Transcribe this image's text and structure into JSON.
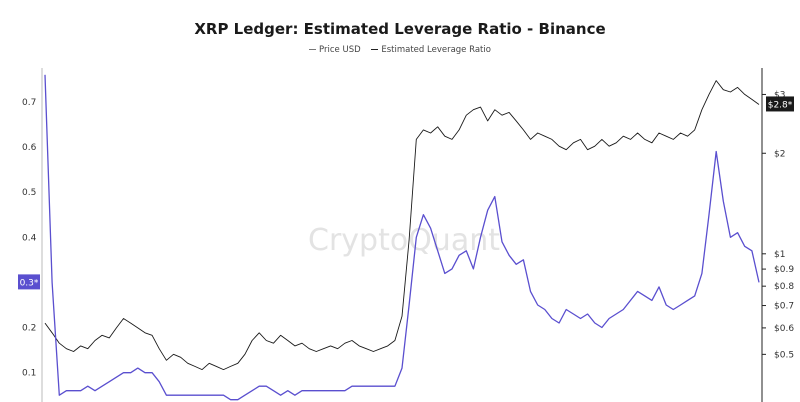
{
  "chart_data": {
    "type": "line",
    "title": "XRP Ledger: Estimated Leverage Ratio - Binance",
    "legend_position": "top-center",
    "watermark": "CryptoQuant",
    "grid": false,
    "y_left": {
      "ticks": [
        {
          "value": 0.1,
          "label": "0.1"
        },
        {
          "value": 0.2,
          "label": "0.2"
        },
        {
          "value": 0.3,
          "label": ""
        },
        {
          "value": 0.4,
          "label": "0.4"
        },
        {
          "value": 0.5,
          "label": "0.5"
        },
        {
          "value": 0.6,
          "label": "0.6"
        },
        {
          "value": 0.7,
          "label": "0.7"
        }
      ],
      "range": [
        0.035,
        0.775
      ]
    },
    "y_right": {
      "scale": "log",
      "ticks": [
        {
          "value": 0.5,
          "label": "$0.5"
        },
        {
          "value": 0.6,
          "label": "$0.6"
        },
        {
          "value": 0.7,
          "label": "$0.7"
        },
        {
          "value": 0.8,
          "label": "$0.8"
        },
        {
          "value": 0.9,
          "label": "$0.9"
        },
        {
          "value": 1,
          "label": "$1"
        },
        {
          "value": 2,
          "label": "$2"
        },
        {
          "value": 3,
          "label": "$3"
        }
      ],
      "range": [
        0.36,
        3.6
      ]
    },
    "current_badges": {
      "left": {
        "label": "0.3*",
        "value": 0.3,
        "color": "#5a4fcf"
      },
      "right": {
        "label": "$2.8*",
        "value": 2.8,
        "color": "#1a1a1a"
      }
    },
    "series": [
      {
        "name": "Estimated Leverage Ratio",
        "axis": "left",
        "color": "#5a4fcf",
        "x": [
          0,
          1,
          2,
          3,
          4,
          5,
          6,
          7,
          8,
          9,
          10,
          11,
          12,
          13,
          14,
          15,
          16,
          17,
          18,
          19,
          20,
          21,
          22,
          23,
          24,
          25,
          26,
          27,
          28,
          29,
          30,
          31,
          32,
          33,
          34,
          35,
          36,
          37,
          38,
          39,
          40,
          41,
          42,
          43,
          44,
          45,
          46,
          47,
          48,
          49,
          50,
          51,
          52,
          53,
          54,
          55,
          56,
          57,
          58,
          59,
          60,
          61,
          62,
          63,
          64,
          65,
          66,
          67,
          68,
          69,
          70,
          71,
          72,
          73,
          74,
          75,
          76,
          77,
          78,
          79,
          80,
          81,
          82,
          83,
          84,
          85,
          86,
          87,
          88,
          89,
          90,
          91,
          92,
          93,
          94,
          95,
          96,
          97,
          98,
          99,
          100
        ],
        "values": [
          0.76,
          0.3,
          0.05,
          0.06,
          0.06,
          0.06,
          0.07,
          0.06,
          0.07,
          0.08,
          0.09,
          0.1,
          0.1,
          0.11,
          0.1,
          0.1,
          0.08,
          0.05,
          0.05,
          0.05,
          0.05,
          0.05,
          0.05,
          0.05,
          0.05,
          0.05,
          0.04,
          0.04,
          0.05,
          0.06,
          0.07,
          0.07,
          0.06,
          0.05,
          0.06,
          0.05,
          0.06,
          0.06,
          0.06,
          0.06,
          0.06,
          0.06,
          0.06,
          0.07,
          0.07,
          0.07,
          0.07,
          0.07,
          0.07,
          0.07,
          0.11,
          0.25,
          0.4,
          0.45,
          0.42,
          0.37,
          0.32,
          0.33,
          0.36,
          0.37,
          0.33,
          0.4,
          0.46,
          0.49,
          0.39,
          0.36,
          0.34,
          0.35,
          0.28,
          0.25,
          0.24,
          0.22,
          0.21,
          0.24,
          0.23,
          0.22,
          0.23,
          0.21,
          0.2,
          0.22,
          0.23,
          0.24,
          0.26,
          0.28,
          0.27,
          0.26,
          0.29,
          0.25,
          0.24,
          0.25,
          0.26,
          0.27,
          0.32,
          0.45,
          0.59,
          0.48,
          0.4,
          0.41,
          0.38,
          0.37,
          0.3
        ]
      },
      {
        "name": "Price USD",
        "axis": "right",
        "color": "#1a1a1a",
        "x": [
          0,
          1,
          2,
          3,
          4,
          5,
          6,
          7,
          8,
          9,
          10,
          11,
          12,
          13,
          14,
          15,
          16,
          17,
          18,
          19,
          20,
          21,
          22,
          23,
          24,
          25,
          26,
          27,
          28,
          29,
          30,
          31,
          32,
          33,
          34,
          35,
          36,
          37,
          38,
          39,
          40,
          41,
          42,
          43,
          44,
          45,
          46,
          47,
          48,
          49,
          50,
          51,
          52,
          53,
          54,
          55,
          56,
          57,
          58,
          59,
          60,
          61,
          62,
          63,
          64,
          65,
          66,
          67,
          68,
          69,
          70,
          71,
          72,
          73,
          74,
          75,
          76,
          77,
          78,
          79,
          80,
          81,
          82,
          83,
          84,
          85,
          86,
          87,
          88,
          89,
          90,
          91,
          92,
          93,
          94,
          95,
          96,
          97,
          98,
          99,
          100
        ],
        "values": [
          0.62,
          0.58,
          0.54,
          0.52,
          0.51,
          0.53,
          0.52,
          0.55,
          0.57,
          0.56,
          0.6,
          0.64,
          0.62,
          0.6,
          0.58,
          0.57,
          0.52,
          0.48,
          0.5,
          0.49,
          0.47,
          0.46,
          0.45,
          0.47,
          0.46,
          0.45,
          0.46,
          0.47,
          0.5,
          0.55,
          0.58,
          0.55,
          0.54,
          0.57,
          0.55,
          0.53,
          0.54,
          0.52,
          0.51,
          0.52,
          0.53,
          0.52,
          0.54,
          0.55,
          0.53,
          0.52,
          0.51,
          0.52,
          0.53,
          0.55,
          0.65,
          1.1,
          2.2,
          2.35,
          2.3,
          2.4,
          2.25,
          2.2,
          2.35,
          2.6,
          2.7,
          2.75,
          2.5,
          2.7,
          2.6,
          2.65,
          2.5,
          2.35,
          2.2,
          2.3,
          2.25,
          2.2,
          2.1,
          2.05,
          2.15,
          2.2,
          2.05,
          2.1,
          2.2,
          2.1,
          2.15,
          2.25,
          2.2,
          2.3,
          2.2,
          2.15,
          2.3,
          2.25,
          2.2,
          2.3,
          2.25,
          2.35,
          2.7,
          3.0,
          3.3,
          3.1,
          3.05,
          3.15,
          3.0,
          2.9,
          2.8
        ]
      }
    ]
  }
}
